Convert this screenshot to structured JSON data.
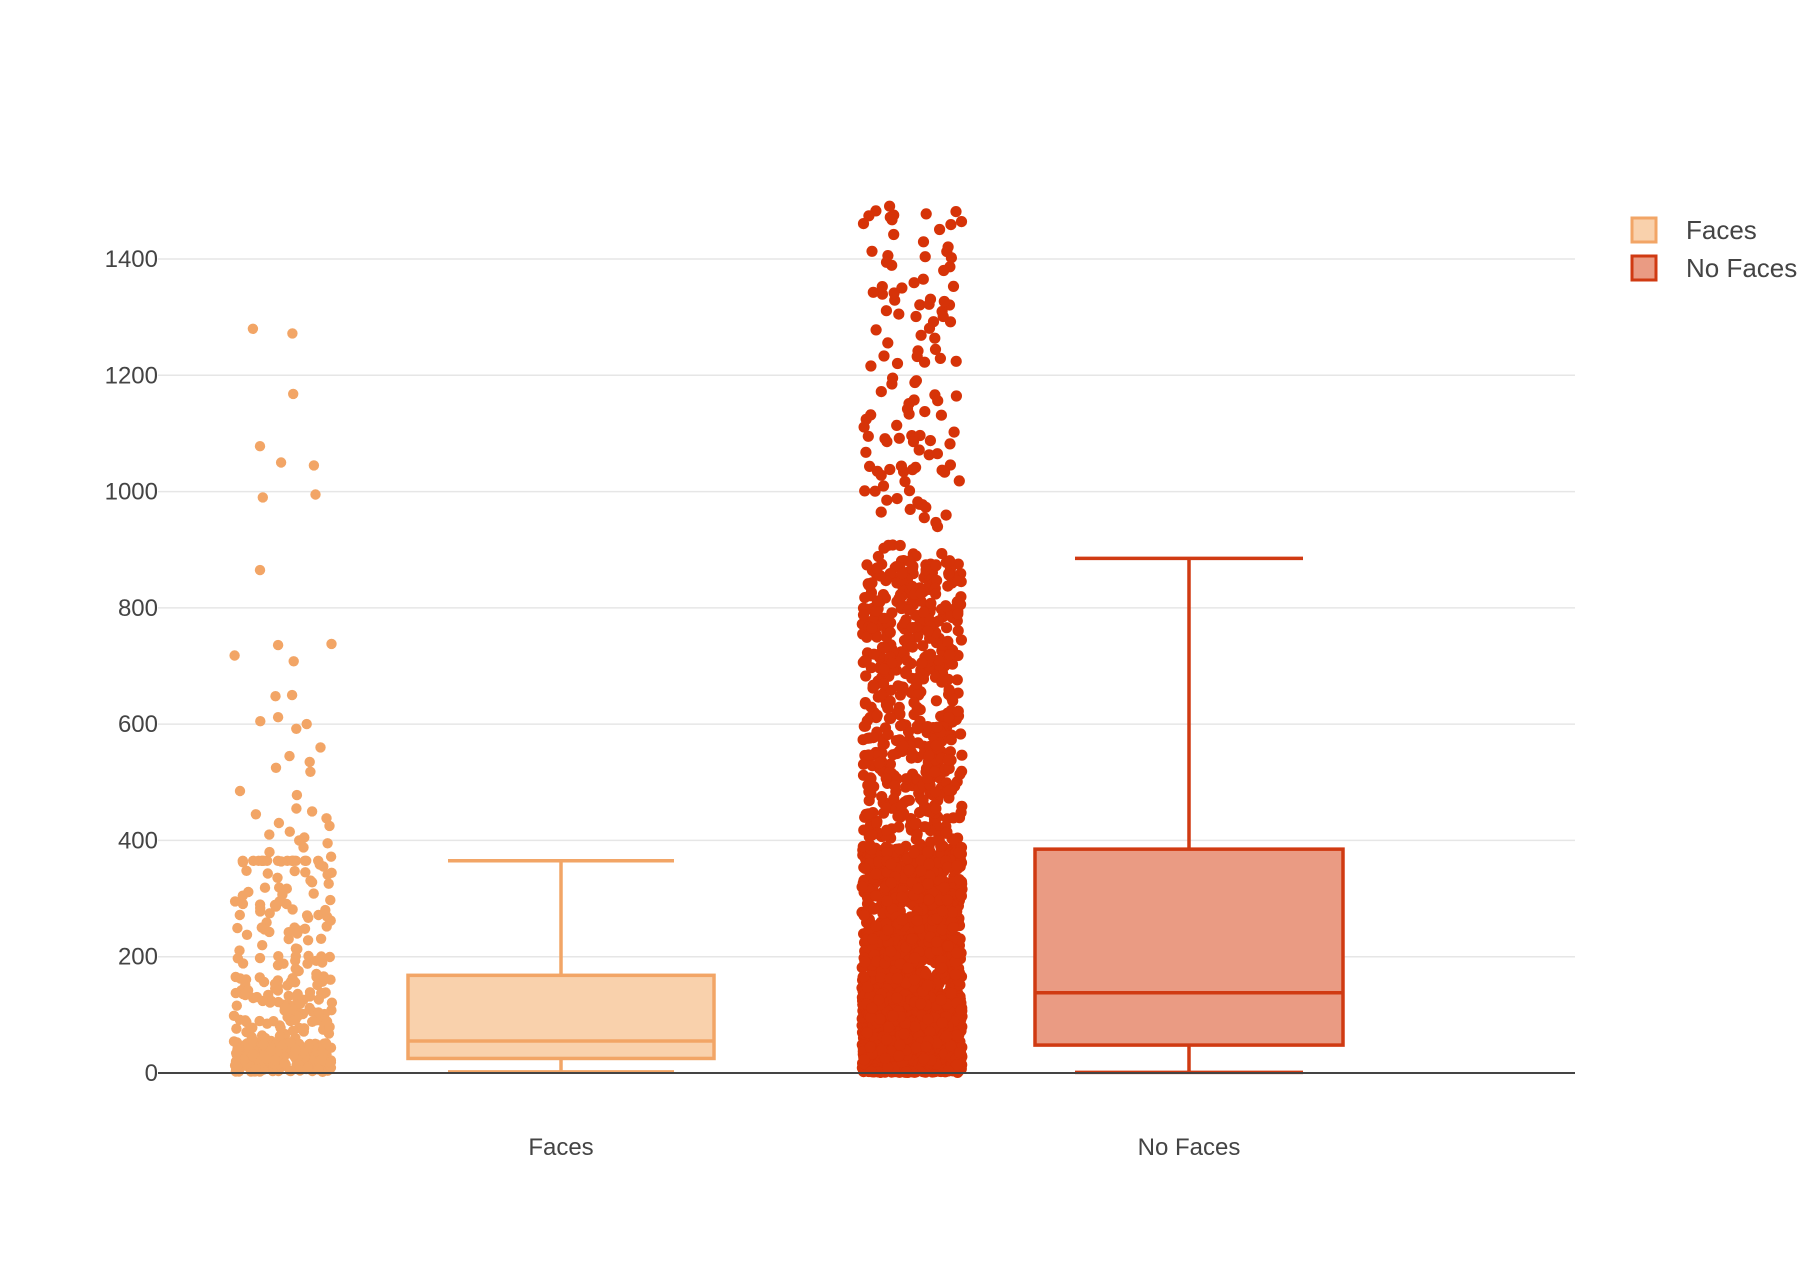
{
  "chart_data": {
    "type": "box",
    "title": "",
    "xlabel": "",
    "ylabel": "",
    "categories": [
      "Faces",
      "No Faces"
    ],
    "ylim": [
      0,
      1500
    ],
    "yticks": [
      0,
      200,
      400,
      600,
      800,
      1000,
      1200,
      1400
    ],
    "grid": true,
    "legend_position": "top-right",
    "boxpoints": "all",
    "series": [
      {
        "name": "Faces",
        "category": "Faces",
        "min": 2,
        "q1": 25,
        "median": 55,
        "q3": 168,
        "whisker_low": 2,
        "whisker_high": 365,
        "max": 1280,
        "n_points": 420,
        "outliers": [
          1280,
          1272,
          1168,
          1078,
          1050,
          1045,
          995,
          990,
          865,
          738,
          736,
          718,
          708,
          650,
          648,
          612,
          605,
          600,
          592,
          560,
          545,
          535,
          525,
          518,
          485,
          478,
          455,
          450,
          445,
          438,
          430,
          425,
          415,
          410,
          405,
          400,
          395,
          388,
          380,
          372
        ],
        "fill_color": "#f9d1ac",
        "line_color": "#f2a566",
        "marker_color": "#f2a566"
      },
      {
        "name": "No Faces",
        "category": "No Faces",
        "min": 1,
        "q1": 48,
        "median": 138,
        "q3": 385,
        "whisker_low": 1,
        "whisker_high": 885,
        "max": 1495,
        "n_points": 3000,
        "fill_color": "#ea9b83",
        "line_color": "#d03a12",
        "marker_color": "#d63308"
      }
    ]
  }
}
